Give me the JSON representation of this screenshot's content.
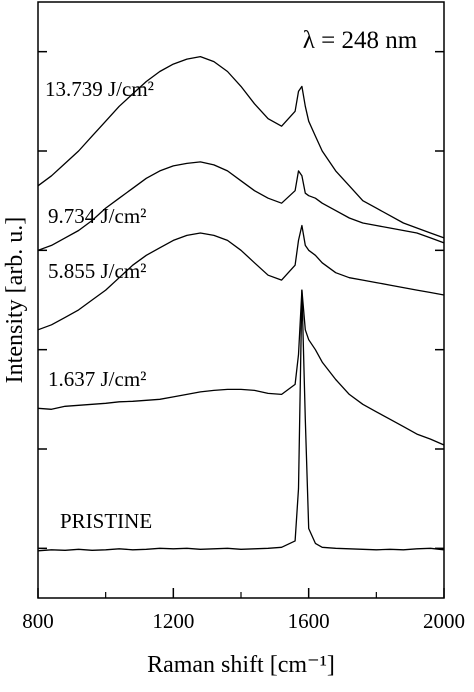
{
  "chart_data": {
    "type": "line",
    "annotation": "λ = 248 nm",
    "xlabel": "Raman shift [cm⁻¹]",
    "ylabel": "Intensity [arb. u.]",
    "x": [
      800,
      840,
      880,
      920,
      960,
      1000,
      1040,
      1080,
      1120,
      1160,
      1200,
      1240,
      1280,
      1320,
      1360,
      1400,
      1440,
      1480,
      1520,
      1560,
      1570,
      1580,
      1590,
      1600,
      1620,
      1640,
      1680,
      1720,
      1760,
      1800,
      1840,
      1880,
      1920,
      1960,
      2000
    ],
    "series": [
      {
        "name": "PRISTINE",
        "color": "#000000",
        "values": [
          0.95,
          0.97,
          0.96,
          0.98,
          0.96,
          0.97,
          0.99,
          0.97,
          0.98,
          1.0,
          0.99,
          1.0,
          0.98,
          0.99,
          1.0,
          0.98,
          0.99,
          1.0,
          1.02,
          1.15,
          2.2,
          6.2,
          3.6,
          1.4,
          1.1,
          1.02,
          1.0,
          0.99,
          0.98,
          0.97,
          0.98,
          0.97,
          0.99,
          1.0,
          0.97
        ]
      },
      {
        "name": "1.637 J/cm²",
        "color": "#000000",
        "values": [
          3.82,
          3.8,
          3.86,
          3.88,
          3.9,
          3.92,
          3.95,
          3.96,
          3.98,
          4.0,
          4.05,
          4.1,
          4.15,
          4.18,
          4.2,
          4.2,
          4.18,
          4.12,
          4.1,
          4.3,
          4.9,
          6.2,
          5.4,
          5.2,
          5.0,
          4.75,
          4.4,
          4.1,
          3.9,
          3.75,
          3.6,
          3.45,
          3.3,
          3.2,
          3.08
        ]
      },
      {
        "name": "5.855 J/cm²",
        "color": "#000000",
        "values": [
          5.4,
          5.5,
          5.65,
          5.8,
          6.0,
          6.2,
          6.45,
          6.7,
          6.9,
          7.05,
          7.2,
          7.3,
          7.35,
          7.3,
          7.2,
          7.0,
          6.75,
          6.5,
          6.4,
          6.7,
          7.2,
          7.5,
          7.1,
          7.0,
          6.9,
          6.75,
          6.55,
          6.45,
          6.4,
          6.35,
          6.3,
          6.25,
          6.2,
          6.15,
          6.1
        ]
      },
      {
        "name": "9.734 J/cm²",
        "color": "#000000",
        "values": [
          7.0,
          7.1,
          7.25,
          7.4,
          7.6,
          7.85,
          8.05,
          8.25,
          8.45,
          8.6,
          8.7,
          8.75,
          8.78,
          8.72,
          8.6,
          8.4,
          8.2,
          8.05,
          7.95,
          8.2,
          8.6,
          8.5,
          8.15,
          8.1,
          8.05,
          7.95,
          7.8,
          7.65,
          7.55,
          7.5,
          7.45,
          7.4,
          7.35,
          7.25,
          7.15
        ]
      },
      {
        "name": "13.739 J/cm²",
        "color": "#000000",
        "values": [
          8.3,
          8.5,
          8.75,
          9.0,
          9.3,
          9.6,
          9.9,
          10.15,
          10.4,
          10.6,
          10.75,
          10.85,
          10.9,
          10.8,
          10.6,
          10.3,
          9.95,
          9.65,
          9.5,
          9.8,
          10.2,
          10.3,
          9.9,
          9.6,
          9.3,
          9.0,
          8.6,
          8.3,
          8.0,
          7.85,
          7.7,
          7.55,
          7.45,
          7.35,
          7.25
        ]
      }
    ],
    "xlim": [
      800,
      2000
    ],
    "xticks": [
      800,
      1200,
      1600,
      2000
    ],
    "x_minor_ticks": [
      1000,
      1400,
      1800
    ],
    "ylim": [
      0,
      12
    ],
    "yticks": [
      1,
      3,
      5,
      7,
      9,
      11
    ]
  }
}
